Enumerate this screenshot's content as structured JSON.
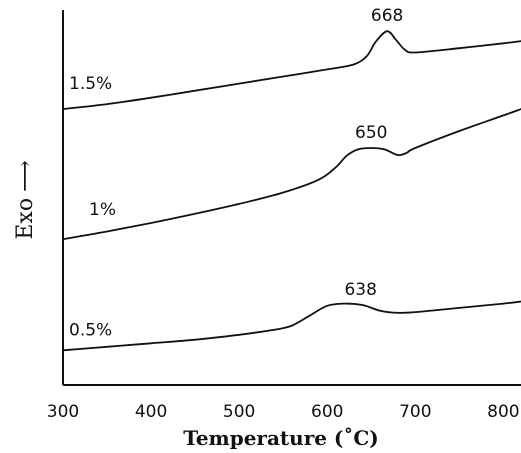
{
  "chart_data": {
    "type": "line",
    "title": "",
    "xlabel": "Temperature (˚C)",
    "ylabel": "Exo",
    "xlim": [
      300,
      820
    ],
    "x_ticks": [
      300,
      400,
      500,
      600,
      700,
      800
    ],
    "y_ticks": [],
    "grid": false,
    "legend": "none",
    "series": [
      {
        "name": "1.5%",
        "peak_label": "668",
        "points": [
          [
            300,
            0.4
          ],
          [
            350,
            0.47
          ],
          [
            400,
            0.56
          ],
          [
            450,
            0.66
          ],
          [
            500,
            0.76
          ],
          [
            550,
            0.86
          ],
          [
            600,
            0.96
          ],
          [
            630,
            1.03
          ],
          [
            645,
            1.15
          ],
          [
            655,
            1.35
          ],
          [
            668,
            1.5
          ],
          [
            678,
            1.38
          ],
          [
            688,
            1.24
          ],
          [
            700,
            1.2
          ],
          [
            750,
            1.26
          ],
          [
            800,
            1.33
          ],
          [
            820,
            1.36
          ]
        ]
      },
      {
        "name": "1%",
        "peak_label": "650",
        "points": [
          [
            300,
            -1.44
          ],
          [
            350,
            -1.33
          ],
          [
            400,
            -1.21
          ],
          [
            450,
            -1.08
          ],
          [
            500,
            -0.94
          ],
          [
            550,
            -0.78
          ],
          [
            590,
            -0.6
          ],
          [
            610,
            -0.42
          ],
          [
            622,
            -0.26
          ],
          [
            635,
            -0.17
          ],
          [
            650,
            -0.15
          ],
          [
            665,
            -0.17
          ],
          [
            680,
            -0.25
          ],
          [
            690,
            -0.22
          ],
          [
            700,
            -0.15
          ],
          [
            750,
            0.09
          ],
          [
            800,
            0.31
          ],
          [
            820,
            0.4
          ]
        ]
      },
      {
        "name": "0.5%",
        "peak_label": "638",
        "points": [
          [
            300,
            -3.01
          ],
          [
            350,
            -2.96
          ],
          [
            400,
            -2.91
          ],
          [
            450,
            -2.86
          ],
          [
            500,
            -2.79
          ],
          [
            540,
            -2.72
          ],
          [
            560,
            -2.66
          ],
          [
            580,
            -2.52
          ],
          [
            600,
            -2.38
          ],
          [
            620,
            -2.35
          ],
          [
            640,
            -2.37
          ],
          [
            660,
            -2.45
          ],
          [
            680,
            -2.48
          ],
          [
            700,
            -2.47
          ],
          [
            750,
            -2.41
          ],
          [
            800,
            -2.35
          ],
          [
            820,
            -2.32
          ]
        ]
      }
    ]
  }
}
